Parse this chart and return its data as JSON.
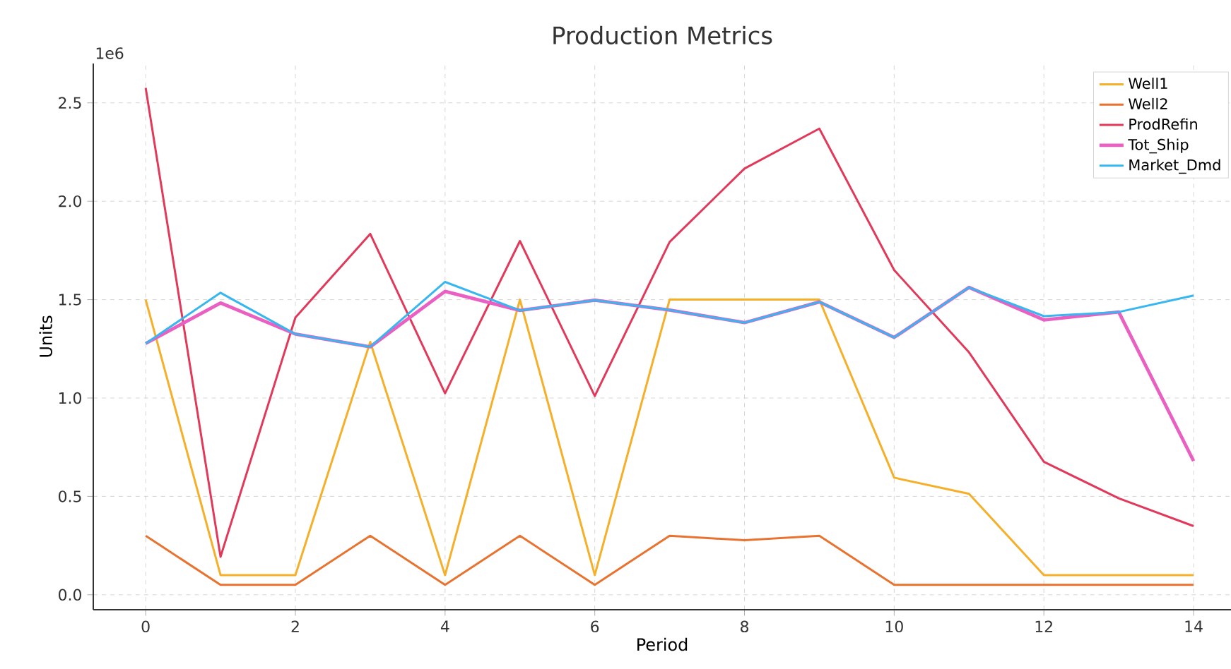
{
  "chart_data": {
    "type": "line",
    "title": "Production Metrics",
    "xlabel": "Period",
    "ylabel": "Units",
    "annotations": [
      "1e6"
    ],
    "x": [
      0,
      1,
      2,
      3,
      4,
      5,
      6,
      7,
      8,
      9,
      10,
      11,
      12,
      13,
      14
    ],
    "series": [
      {
        "name": "Well1",
        "color": "#f5af28",
        "values": [
          1.5,
          0.1,
          0.1,
          1.285,
          0.1,
          1.5,
          0.1,
          1.5,
          1.5,
          1.5,
          0.595,
          0.513,
          0.1,
          0.1,
          0.1
        ]
      },
      {
        "name": "Well2",
        "color": "#e8722e",
        "values": [
          0.3,
          0.05,
          0.05,
          0.3,
          0.05,
          0.3,
          0.05,
          0.3,
          0.277,
          0.3,
          0.05,
          0.05,
          0.05,
          0.05,
          0.05
        ]
      },
      {
        "name": "ProdRefin",
        "color": "#e2395a",
        "values": [
          2.576,
          0.193,
          1.409,
          1.834,
          1.024,
          1.798,
          1.01,
          1.793,
          2.166,
          2.369,
          1.65,
          1.232,
          0.676,
          0.49,
          0.349
        ]
      },
      {
        "name": "Tot_Ship",
        "color": "#ea5fc2",
        "values": [
          1.277,
          1.483,
          1.325,
          1.26,
          1.542,
          1.445,
          1.497,
          1.447,
          1.383,
          1.488,
          1.308,
          1.562,
          1.397,
          1.437,
          0.68
        ]
      },
      {
        "name": "Market_Dmd",
        "color": "#38b6f0",
        "values": [
          1.277,
          1.535,
          1.325,
          1.26,
          1.59,
          1.445,
          1.497,
          1.447,
          1.383,
          1.488,
          1.308,
          1.562,
          1.416,
          1.437,
          1.521
        ]
      }
    ],
    "xlim": [
      -0.7,
      14.5
    ],
    "ylim": [
      -0.076,
      2.7
    ],
    "xticks": [
      0,
      2,
      4,
      6,
      8,
      10,
      12,
      14
    ],
    "yticks": [
      {
        "value": 0,
        "label": "0.0"
      },
      {
        "value": 0.5,
        "label": "0.5"
      },
      {
        "value": 1,
        "label": "1.0"
      },
      {
        "value": 1.5,
        "label": "1.5"
      },
      {
        "value": 2,
        "label": "2.0"
      },
      {
        "value": 2.5,
        "label": "2.5"
      }
    ],
    "grid": true,
    "legend": "top right",
    "line_style": "solid"
  }
}
